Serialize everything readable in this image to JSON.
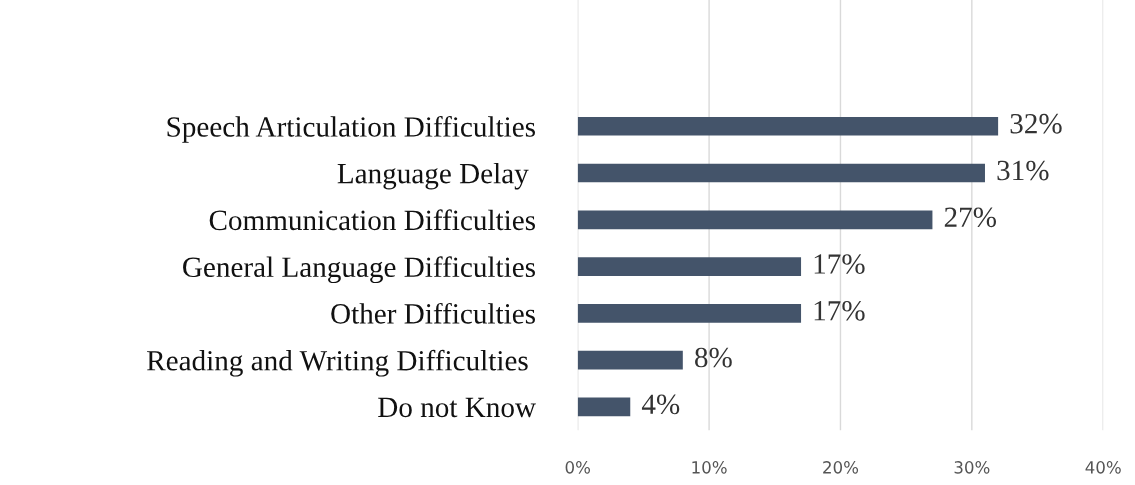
{
  "chart_data": {
    "type": "bar",
    "orientation": "horizontal",
    "categories": [
      "Speech Articulation Difficulties",
      "Language Delay ",
      "Communication Difficulties",
      "General Language Difficulties",
      "Other Difficulties",
      "Reading and Writing Difficulties ",
      "Do not Know"
    ],
    "values": [
      32,
      31,
      27,
      17,
      17,
      8,
      4
    ],
    "value_labels": [
      "32%",
      "31%",
      "27%",
      "17%",
      "17%",
      "8%",
      "4%"
    ],
    "color": "#44546a",
    "xlim": [
      0,
      40
    ],
    "xticks": [
      {
        "value": 0,
        "label": "0%"
      },
      {
        "value": 10,
        "label": "10%"
      },
      {
        "value": 20,
        "label": "20%"
      },
      {
        "value": 30,
        "label": "30%"
      },
      {
        "value": 40,
        "label": "40%"
      }
    ],
    "grid": "x"
  }
}
